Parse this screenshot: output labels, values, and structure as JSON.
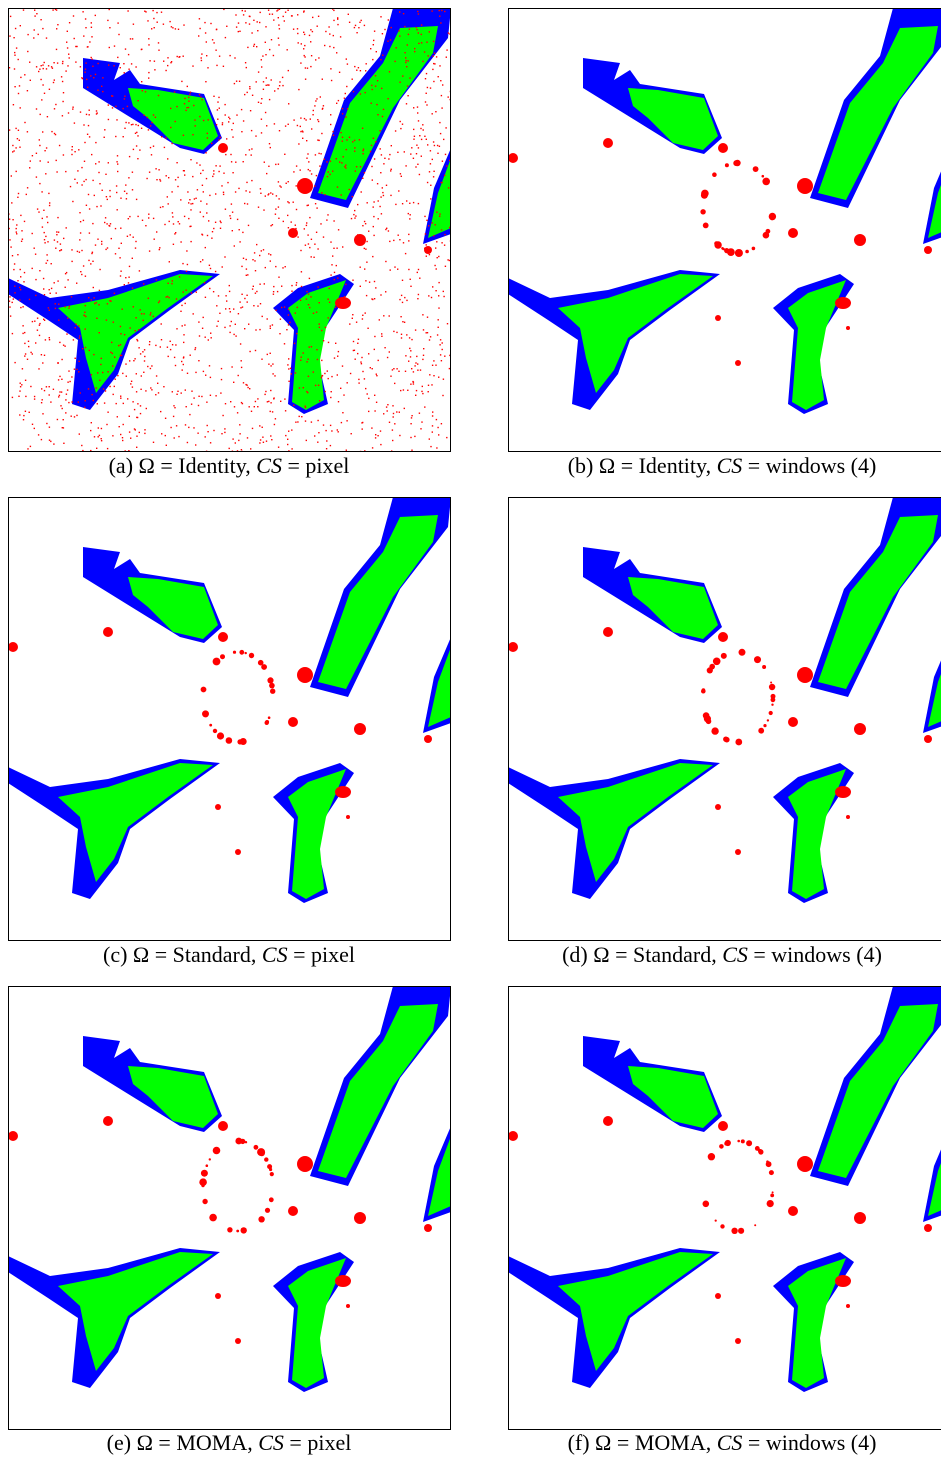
{
  "panels": [
    {
      "caption": {
        "prefix": "(a) Ω = Identity,",
        "variable": "CS",
        "suffix": "= pixel"
      }
    },
    {
      "caption": {
        "prefix": "(b) Ω = Identity,",
        "variable": "CS",
        "suffix": "= windows (4)"
      }
    },
    {
      "caption": {
        "prefix": "(c) Ω = Standard,",
        "variable": "CS",
        "suffix": "= pixel"
      }
    },
    {
      "caption": {
        "prefix": "(d) Ω = Standard,",
        "variable": "CS",
        "suffix": "= windows (4)"
      }
    },
    {
      "caption": {
        "prefix": "(e) Ω = MOMA,",
        "variable": "CS",
        "suffix": "= pixel"
      }
    },
    {
      "caption": {
        "prefix": "(f) Ω = MOMA,",
        "variable": "CS",
        "suffix": "= windows (4)"
      }
    }
  ]
}
